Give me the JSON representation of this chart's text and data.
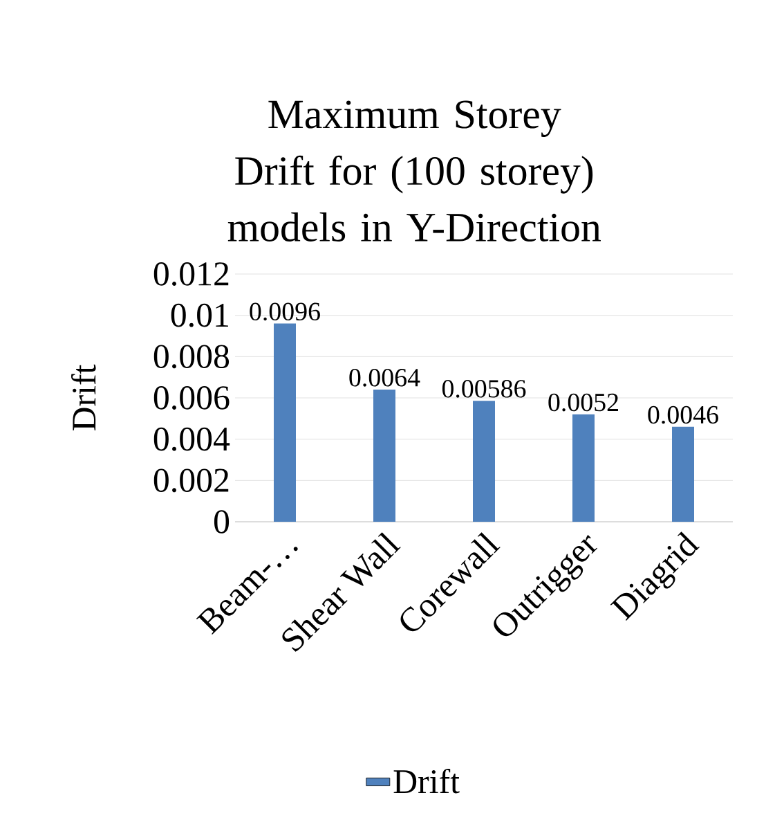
{
  "chart_data": {
    "type": "bar",
    "title": "Maximum Storey Drift for (100 storey) models in Y-Direction",
    "ylabel": "Drift",
    "categories": [
      "Beam-…",
      "Shear Wall",
      "Corewall",
      "Outrigger",
      "Diagrid"
    ],
    "series": [
      {
        "name": "Drift",
        "color": "#4f81bd",
        "values": [
          0.0096,
          0.0064,
          0.00586,
          0.0052,
          0.0046
        ]
      }
    ],
    "ylim": [
      0,
      0.012
    ],
    "yticks": [
      0,
      0.002,
      0.004,
      0.006,
      0.008,
      0.01,
      0.012
    ],
    "grid": "y",
    "legend": "bottom",
    "data_labels": true
  }
}
